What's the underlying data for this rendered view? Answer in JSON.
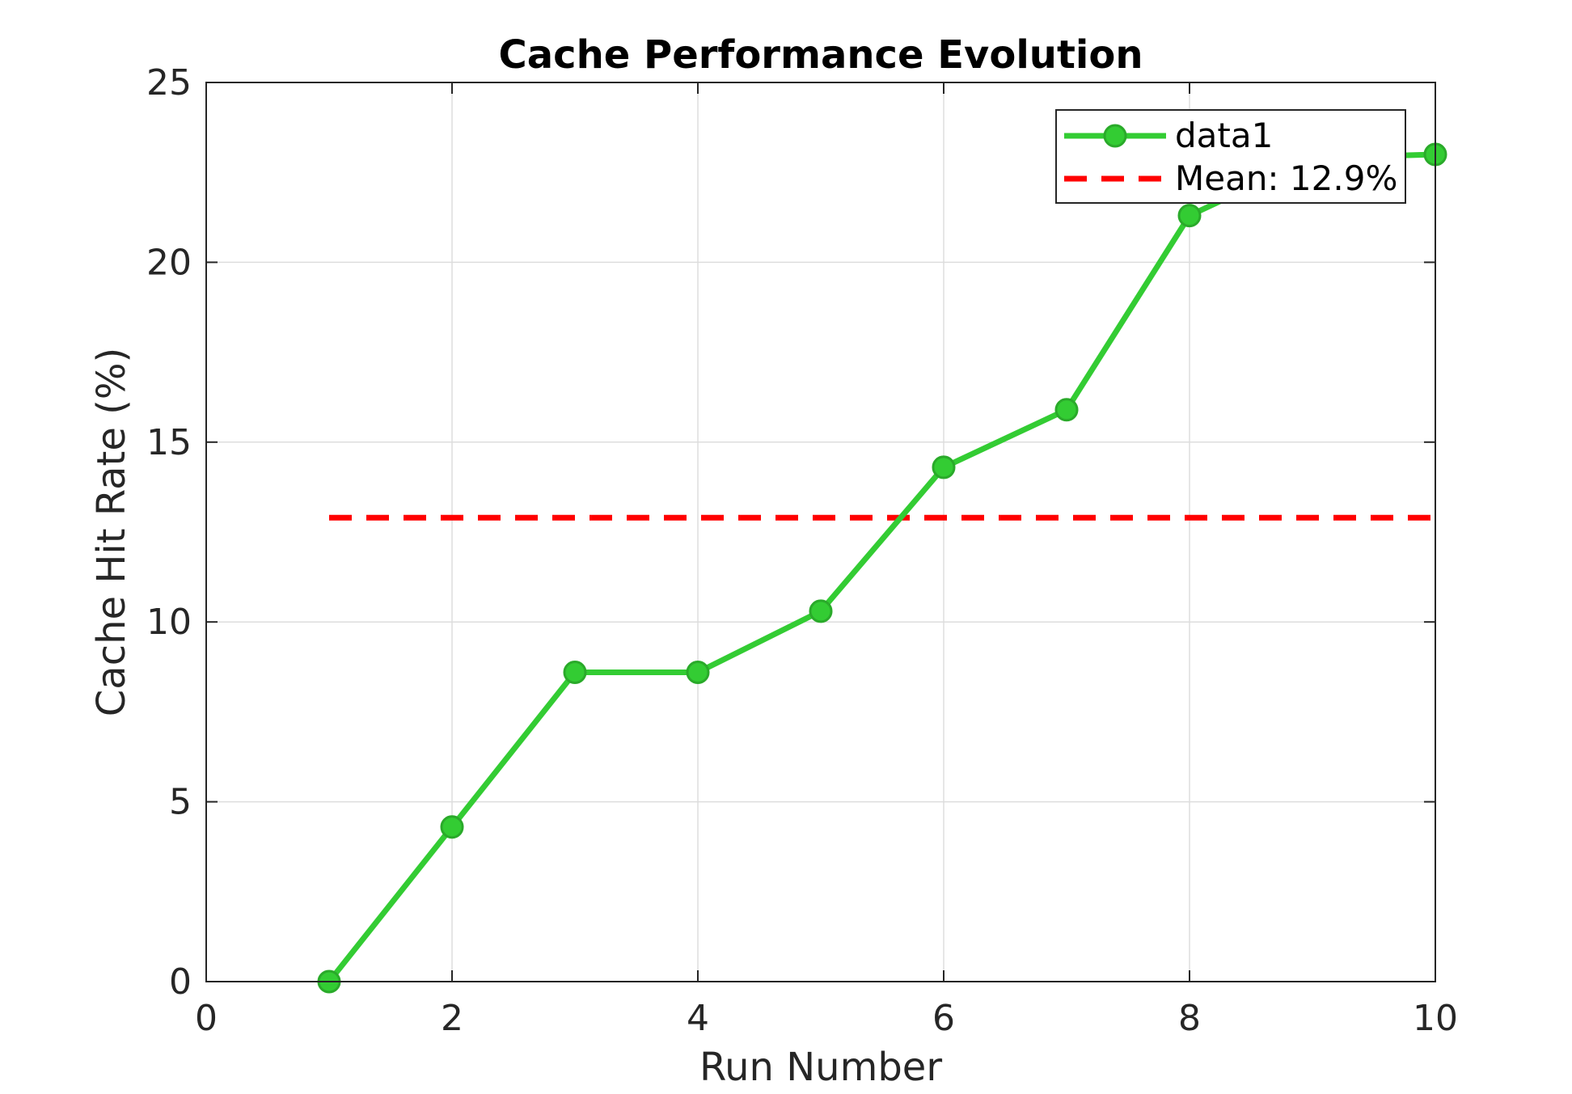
{
  "chart_data": {
    "type": "line",
    "title": "Cache Performance Evolution",
    "xlabel": "Run Number",
    "ylabel": "Cache Hit Rate (%)",
    "xlim": [
      0,
      10
    ],
    "ylim": [
      0,
      25
    ],
    "xticks": [
      0,
      2,
      4,
      6,
      8,
      10
    ],
    "yticks": [
      0,
      5,
      10,
      15,
      20,
      25
    ],
    "grid": true,
    "legend_location": "top-right",
    "series": [
      {
        "name": "data1",
        "style": "solid-line-circle-markers",
        "color": "#33CC33",
        "x": [
          1,
          2,
          3,
          4,
          5,
          6,
          7,
          8,
          9,
          10
        ],
        "y": [
          0.0,
          4.3,
          8.6,
          8.6,
          10.3,
          14.3,
          15.9,
          21.3,
          22.9,
          23.0
        ]
      },
      {
        "name": "Mean: 12.9%",
        "style": "dashed",
        "color": "#FF0000",
        "x": [
          1,
          10
        ],
        "y": [
          12.9,
          12.9
        ]
      }
    ]
  }
}
